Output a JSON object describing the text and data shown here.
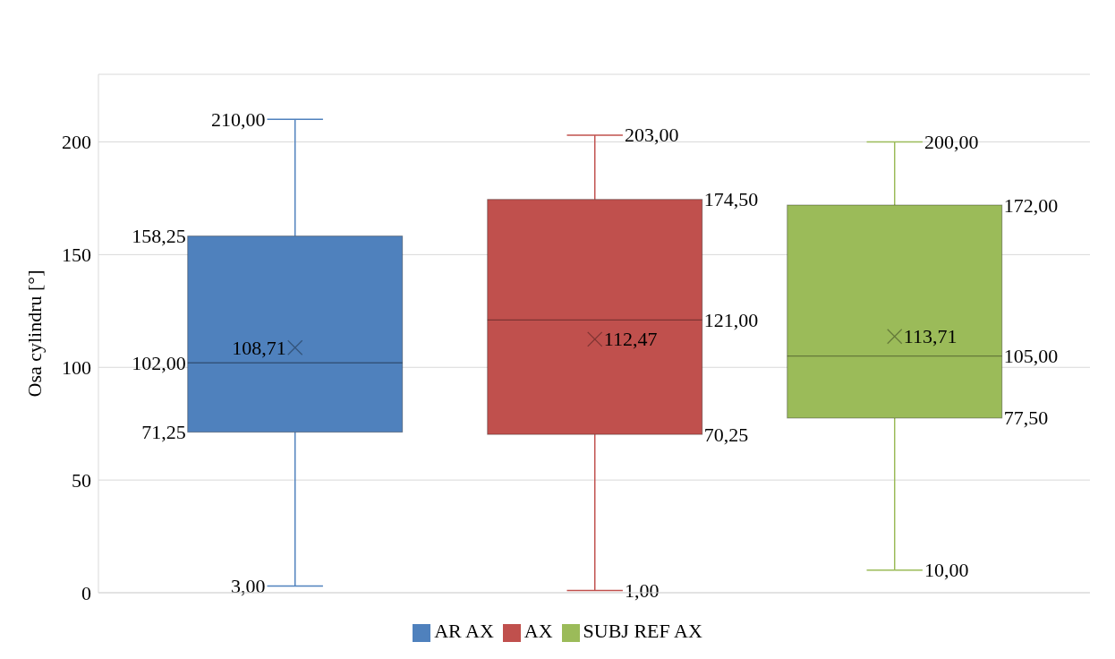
{
  "chart_data": {
    "type": "box",
    "ylabel": "Osa cylindru [°]",
    "categories": [
      null
    ],
    "series": [
      {
        "name": "AR AX",
        "color": "#4f81bd",
        "boxes": [
          {
            "low": 3,
            "q1": 71.25,
            "median": 102,
            "q3": 158.25,
            "high": 210,
            "mean": 108.71
          }
        ],
        "value_labels": [
          {
            "low": "3,00",
            "q1": "71,25",
            "median": "102,00",
            "q3": "158,25",
            "high": "210,00",
            "mean": "108,71"
          }
        ]
      },
      {
        "name": "AX",
        "color": "#c0504d",
        "boxes": [
          {
            "low": 1,
            "q1": 70.25,
            "median": 121,
            "q3": 174.5,
            "high": 203,
            "mean": 112.47
          }
        ],
        "value_labels": [
          {
            "low": "1,00",
            "q1": "70,25",
            "median": "121,00",
            "q3": "174,50",
            "high": "203,00",
            "mean": "112,47"
          }
        ]
      },
      {
        "name": "SUBJ REF AX",
        "color": "#9bbb59",
        "boxes": [
          {
            "low": 10,
            "q1": 77.5,
            "median": 105,
            "q3": 172,
            "high": 200,
            "mean": 113.71
          }
        ],
        "value_labels": [
          {
            "low": "10,00",
            "q1": "77,50",
            "median": "105,00",
            "q3": "172,00",
            "high": "200,00",
            "mean": "113,71"
          }
        ]
      }
    ],
    "ylim": [
      0,
      230
    ],
    "yticks": [
      0,
      50,
      100,
      150,
      200
    ],
    "grid": "y",
    "legend": "bottom",
    "marker": "cross"
  }
}
